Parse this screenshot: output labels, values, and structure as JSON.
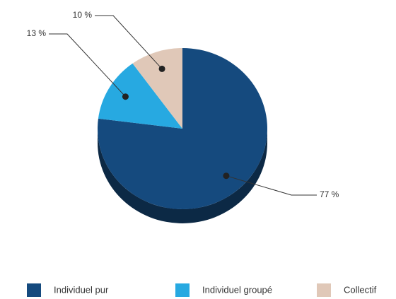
{
  "chart_data": {
    "type": "pie",
    "categories": [
      "Individuel pur",
      "Individuel groupé",
      "Collectif"
    ],
    "values": [
      77,
      13,
      10
    ],
    "value_labels": [
      "77 %",
      "13 %",
      "10 %"
    ],
    "colors": [
      "#154a7e",
      "#27a9e1",
      "#e0c8b8"
    ],
    "legend": "bottom"
  }
}
